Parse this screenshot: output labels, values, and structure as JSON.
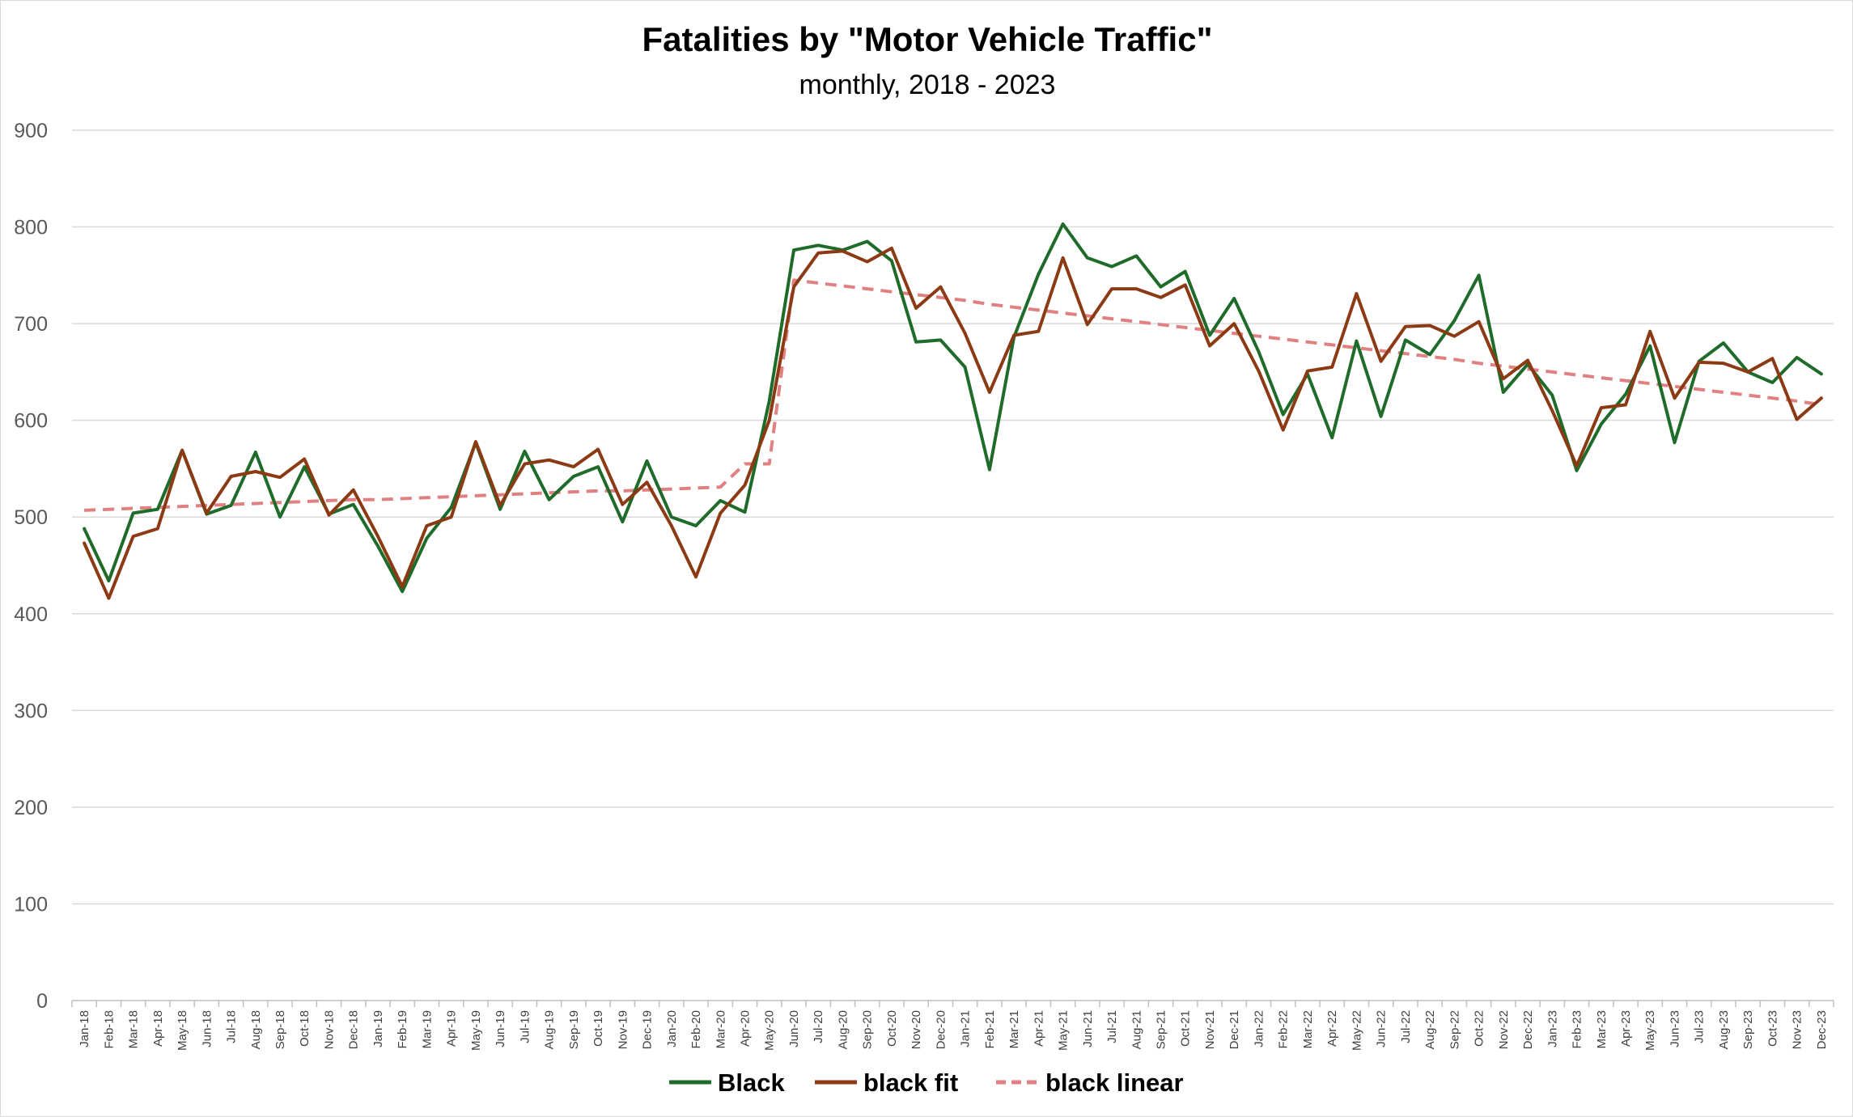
{
  "chart_data": {
    "type": "line",
    "title": "Fatalities by \"Motor Vehicle Traffic\"",
    "subtitle": "monthly, 2018 - 2023",
    "xlabel": "",
    "ylabel": "",
    "ylim": [
      0,
      900
    ],
    "yticks": [
      0,
      100,
      200,
      300,
      400,
      500,
      600,
      700,
      800,
      900
    ],
    "grid": "horizontal",
    "legend_position": "bottom",
    "categories": [
      "Jan-18",
      "Feb-18",
      "Mar-18",
      "Apr-18",
      "May-18",
      "Jun-18",
      "Jul-18",
      "Aug-18",
      "Sep-18",
      "Oct-18",
      "Nov-18",
      "Dec-18",
      "Jan-19",
      "Feb-19",
      "Mar-19",
      "Apr-19",
      "May-19",
      "Jun-19",
      "Jul-19",
      "Aug-19",
      "Sep-19",
      "Oct-19",
      "Nov-19",
      "Dec-19",
      "Jan-20",
      "Feb-20",
      "Mar-20",
      "Apr-20",
      "May-20",
      "Jun-20",
      "Jul-20",
      "Aug-20",
      "Sep-20",
      "Oct-20",
      "Nov-20",
      "Dec-20",
      "Jan-21",
      "Feb-21",
      "Mar-21",
      "Apr-21",
      "May-21",
      "Jun-21",
      "Jul-21",
      "Aug-21",
      "Sep-21",
      "Oct-21",
      "Nov-21",
      "Dec-21",
      "Jan-22",
      "Feb-22",
      "Mar-22",
      "Apr-22",
      "May-22",
      "Jun-22",
      "Jul-22",
      "Aug-22",
      "Sep-22",
      "Oct-22",
      "Nov-22",
      "Dec-22",
      "Jan-23",
      "Feb-23",
      "Mar-23",
      "Apr-23",
      "May-23",
      "Jun-23",
      "Jul-23",
      "Aug-23",
      "Sep-23",
      "Oct-23",
      "Nov-23",
      "Dec-23"
    ],
    "series": [
      {
        "name": "Black",
        "color": "#1e6b2a",
        "dash": "solid",
        "values": [
          488,
          434,
          504,
          508,
          569,
          503,
          512,
          567,
          500,
          552,
          503,
          513,
          470,
          423,
          478,
          510,
          577,
          508,
          568,
          518,
          542,
          552,
          495,
          558,
          500,
          491,
          517,
          505,
          620,
          776,
          781,
          776,
          785,
          765,
          681,
          683,
          655,
          549,
          686,
          751,
          803,
          768,
          759,
          770,
          738,
          754,
          688,
          726,
          671,
          606,
          648,
          582,
          682,
          604,
          683,
          668,
          703,
          750,
          629,
          658,
          626,
          548,
          596,
          627,
          677,
          577,
          661,
          680,
          650,
          639,
          665,
          648
        ]
      },
      {
        "name": "black fit",
        "color": "#8b3a14",
        "dash": "solid",
        "values": [
          473,
          416,
          480,
          488,
          569,
          504,
          542,
          547,
          541,
          560,
          502,
          528,
          480,
          428,
          491,
          500,
          578,
          512,
          555,
          559,
          552,
          570,
          513,
          536,
          491,
          438,
          504,
          533,
          600,
          738,
          773,
          775,
          764,
          778,
          716,
          738,
          690,
          629,
          688,
          692,
          768,
          699,
          736,
          736,
          727,
          740,
          677,
          700,
          651,
          590,
          651,
          655,
          731,
          661,
          697,
          698,
          687,
          702,
          643,
          662,
          610,
          553,
          613,
          616,
          692,
          623,
          660,
          659,
          650,
          664,
          601,
          623
        ]
      },
      {
        "name": "black linear",
        "color": "#e08080",
        "dash": "dashed",
        "values": [
          507,
          508,
          509,
          510,
          511,
          512,
          513,
          514,
          515,
          516,
          517,
          518,
          518,
          519,
          520,
          521,
          522,
          523,
          524,
          525,
          526,
          527,
          527,
          528,
          529,
          530,
          531,
          555,
          555,
          745,
          742,
          739,
          736,
          733,
          730,
          727,
          724,
          720,
          717,
          714,
          711,
          708,
          705,
          702,
          699,
          696,
          693,
          690,
          687,
          684,
          681,
          678,
          675,
          672,
          669,
          666,
          663,
          659,
          656,
          653,
          650,
          647,
          644,
          641,
          638,
          635,
          632,
          629,
          626,
          623,
          620,
          616
        ]
      }
    ]
  }
}
